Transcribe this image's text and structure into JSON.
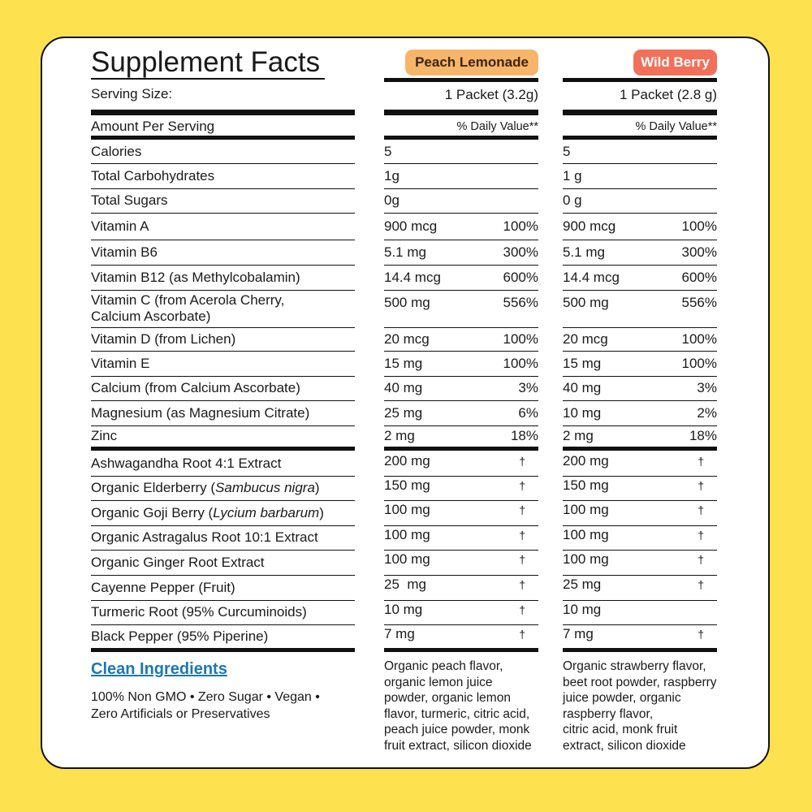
{
  "title": "Supplement Facts",
  "serving_label": "Serving Size:",
  "amount_label": "Amount Per Serving",
  "columns": [
    {
      "name": "Peach Lemonade",
      "serving": "1 Packet (3.2g)",
      "dv_label": "% Daily Value**",
      "ingredients": [
        "Organic peach flavor,",
        "organic lemon juice",
        "powder, organic lemon",
        "flavor, turmeric, citric acid,",
        "peach juice powder, monk",
        "fruit extract, silicon dioxide"
      ]
    },
    {
      "name": "Wild Berry",
      "serving": "1 Packet (2.8 g)",
      "dv_label": "% Daily Value**",
      "ingredients": [
        "Organic strawberry flavor,",
        "beet root powder, raspberry",
        "juice powder, organic",
        "raspberry flavor,",
        "citric acid, monk fruit",
        "extract, silicon dioxide"
      ]
    }
  ],
  "sections": [
    {
      "rows": [
        {
          "label": "Calories",
          "cells": [
            [
              "5",
              null
            ],
            [
              "5",
              null
            ]
          ]
        },
        {
          "label": "Total Carbohydrates",
          "cells": [
            [
              "1g",
              null
            ],
            [
              "1 g",
              null
            ]
          ]
        },
        {
          "label": "Total Sugars",
          "cells": [
            [
              "0g",
              null
            ],
            [
              "0 g",
              null
            ]
          ]
        },
        {
          "label": "Vitamin A",
          "cells": [
            [
              "900 mcg",
              "100%"
            ],
            [
              "900 mcg",
              "100%"
            ]
          ]
        },
        {
          "label": "Vitamin B6",
          "cells": [
            [
              "5.1 mg",
              "300%"
            ],
            [
              "5.1 mg",
              "300%"
            ]
          ]
        },
        {
          "label": "Vitamin B12 (as Methylcobalamin)",
          "cells": [
            [
              "14.4 mcg",
              "600%"
            ],
            [
              "14.4 mcg",
              "600%"
            ]
          ]
        },
        {
          "label": "Vitamin C (from Acerola Cherry,",
          "label_line2": "Calcium Ascorbate)",
          "cells": [
            [
              "500 mg",
              "556%"
            ],
            [
              "500 mg",
              "556%"
            ]
          ]
        },
        {
          "label": "Vitamin D (from Lichen)",
          "cells": [
            [
              "20 mcg",
              "100%"
            ],
            [
              "20 mcg",
              "100%"
            ]
          ]
        },
        {
          "label": "Vitamin E",
          "cells": [
            [
              "15 mg",
              "100%"
            ],
            [
              "15 mg",
              "100%"
            ]
          ]
        },
        {
          "label": "Calcium (from Calcium Ascorbate)",
          "cells": [
            [
              "40 mg",
              "3%"
            ],
            [
              "40 mg",
              "3%"
            ]
          ]
        },
        {
          "label": "Magnesium (as Magnesium Citrate)",
          "cells": [
            [
              "25 mg",
              "6%"
            ],
            [
              "10 mg",
              "2%"
            ]
          ]
        },
        {
          "label": "Zinc",
          "cells": [
            [
              "2 mg",
              "18%"
            ],
            [
              "2 mg",
              "18%"
            ]
          ]
        }
      ]
    },
    {
      "rows": [
        {
          "label": "Ashwagandha Root 4:1 Extract",
          "cells": [
            [
              "200 mg",
              "†"
            ],
            [
              "200 mg",
              "†"
            ]
          ]
        },
        {
          "label": "Organic Elderberry (",
          "label_italic": "Sambucus nigra",
          "label_end": ")",
          "cells": [
            [
              "150 mg",
              "†"
            ],
            [
              "150 mg",
              "†"
            ]
          ]
        },
        {
          "label": "Organic Goji Berry (",
          "label_italic": "Lycium barbarum",
          "label_end": ")",
          "cells": [
            [
              "100 mg",
              "†"
            ],
            [
              "100 mg",
              "†"
            ]
          ]
        },
        {
          "label": "Organic Astragalus Root 10:1 Extract",
          "cells": [
            [
              "100 mg",
              "†"
            ],
            [
              "100 mg",
              "†"
            ]
          ]
        },
        {
          "label": "Organic Ginger Root Extract",
          "cells": [
            [
              "100 mg",
              "†"
            ],
            [
              "100 mg",
              "†"
            ]
          ]
        },
        {
          "label": "Cayenne Pepper (Fruit)",
          "cells": [
            [
              "25  mg",
              "†"
            ],
            [
              "25 mg",
              "†"
            ]
          ]
        },
        {
          "label": "Turmeric Root (95% Curcuminoids)",
          "cells": [
            [
              "10 mg",
              "†"
            ],
            [
              "10 mg",
              null
            ]
          ]
        },
        {
          "label": "Black Pepper (95% Piperine)",
          "cells": [
            [
              "7 mg",
              "†"
            ],
            [
              "7 mg",
              "†"
            ]
          ]
        }
      ]
    }
  ],
  "footer": {
    "heading": "Clean Ingredients",
    "lines": [
      "100% Non GMO • Zero Sugar • Vegan •",
      "Zero Artificials or Preservatives"
    ]
  }
}
